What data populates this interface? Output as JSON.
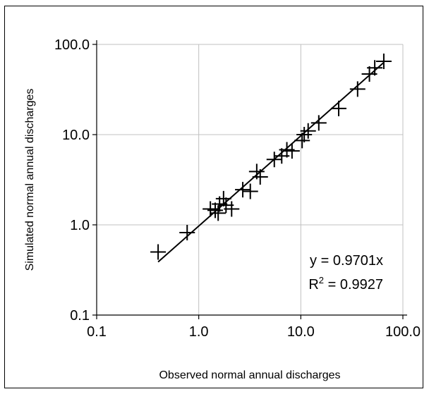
{
  "chart_data": {
    "type": "scatter",
    "title": "",
    "xlabel": "Observed normal annual discharges",
    "ylabel": "Simulated normal annual discharges",
    "x_scale": "log",
    "y_scale": "log",
    "xlim": [
      0.1,
      100.0
    ],
    "ylim": [
      0.1,
      100.0
    ],
    "x_ticks": [
      {
        "value": 0.1,
        "label": "0.1"
      },
      {
        "value": 1.0,
        "label": "1.0"
      },
      {
        "value": 10.0,
        "label": "10.0"
      },
      {
        "value": 100.0,
        "label": "100.0"
      }
    ],
    "y_ticks": [
      {
        "value": 0.1,
        "label": "0.1"
      },
      {
        "value": 1.0,
        "label": "1.0"
      },
      {
        "value": 10.0,
        "label": "10.0"
      },
      {
        "value": 100.0,
        "label": "100.0"
      }
    ],
    "grid": true,
    "legend": "none",
    "marker": "plus",
    "color": "#000000",
    "points": [
      {
        "x": 0.4,
        "y": 0.5
      },
      {
        "x": 0.77,
        "y": 0.82
      },
      {
        "x": 1.3,
        "y": 1.5
      },
      {
        "x": 1.45,
        "y": 1.45
      },
      {
        "x": 1.55,
        "y": 1.35
      },
      {
        "x": 1.6,
        "y": 1.7
      },
      {
        "x": 1.75,
        "y": 1.95
      },
      {
        "x": 1.85,
        "y": 1.65
      },
      {
        "x": 2.1,
        "y": 1.5
      },
      {
        "x": 2.7,
        "y": 2.45
      },
      {
        "x": 3.2,
        "y": 2.35
      },
      {
        "x": 3.7,
        "y": 3.9
      },
      {
        "x": 4.0,
        "y": 3.4
      },
      {
        "x": 5.5,
        "y": 5.3
      },
      {
        "x": 6.5,
        "y": 5.8
      },
      {
        "x": 7.3,
        "y": 6.8
      },
      {
        "x": 8.2,
        "y": 6.6
      },
      {
        "x": 10.3,
        "y": 8.6
      },
      {
        "x": 10.8,
        "y": 10.0
      },
      {
        "x": 11.8,
        "y": 11.0
      },
      {
        "x": 15.0,
        "y": 13.5
      },
      {
        "x": 23.5,
        "y": 19.5
      },
      {
        "x": 36.0,
        "y": 32.0
      },
      {
        "x": 47.0,
        "y": 47.0
      },
      {
        "x": 53.0,
        "y": 55.0
      },
      {
        "x": 65.0,
        "y": 65.0
      }
    ],
    "trendline": {
      "slope": 0.9701,
      "x_range": [
        0.4,
        65.0
      ]
    },
    "annotations": {
      "equation": "y = 0.9701x",
      "r2_prefix": "R",
      "r2_exponent": "2",
      "r2_value": " = 0.9927"
    }
  }
}
